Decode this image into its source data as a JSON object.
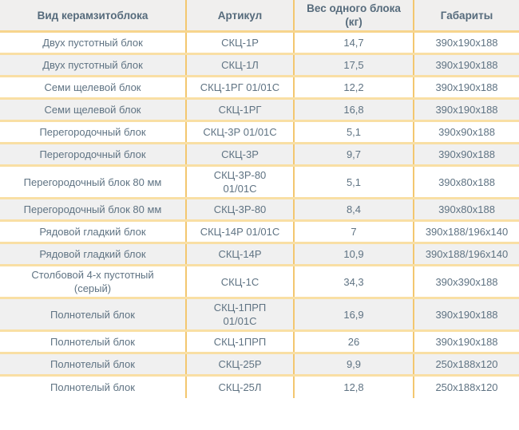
{
  "table": {
    "columns": [
      {
        "id": "type",
        "label": "Вид керамзитоблока"
      },
      {
        "id": "articul",
        "label": "Артикул"
      },
      {
        "id": "weight",
        "label": "Вес одного блока (кг)"
      },
      {
        "id": "dimensions",
        "label": "Габариты"
      }
    ],
    "rows": [
      {
        "type": "Двух пустотный блок",
        "articul": "СКЦ-1Р",
        "weight": "14,7",
        "dimensions": "390х190х188"
      },
      {
        "type": "Двух пустотный блок",
        "articul": "СКЦ-1Л",
        "weight": "17,5",
        "dimensions": "390х190х188"
      },
      {
        "type": "Семи щелевой блок",
        "articul": "СКЦ-1РГ 01/01С",
        "weight": "12,2",
        "dimensions": "390х190х188"
      },
      {
        "type": "Семи щелевой блок",
        "articul": "СКЦ-1РГ",
        "weight": "16,8",
        "dimensions": "390х190х188"
      },
      {
        "type": "Перегородочный блок",
        "articul": "СКЦ-3Р 01/01С",
        "weight": "5,1",
        "dimensions": "390х90х188"
      },
      {
        "type": "Перегородочный блок",
        "articul": "СКЦ-3Р",
        "weight": "9,7",
        "dimensions": "390х90х188"
      },
      {
        "type": "Перегородочный блок 80 мм",
        "articul": "СКЦ-3Р-80\n01/01С",
        "weight": "5,1",
        "dimensions": "390х80х188"
      },
      {
        "type": "Перегородочный блок 80 мм",
        "articul": "СКЦ-3Р-80",
        "weight": "8,4",
        "dimensions": "390х80х188"
      },
      {
        "type": "Рядовой гладкий блок",
        "articul": "СКЦ-14Р 01/01С",
        "weight": "7",
        "dimensions": "390х188/196х140"
      },
      {
        "type": "Рядовой гладкий блок",
        "articul": "СКЦ-14Р",
        "weight": "10,9",
        "dimensions": "390х188/196х140"
      },
      {
        "type": "Столбовой 4-х пустотный\n(серый)",
        "articul": "СКЦ-1С",
        "weight": "34,3",
        "dimensions": "390х390х188"
      },
      {
        "type": "Полнотелый блок",
        "articul": "СКЦ-1ПРП\n01/01С",
        "weight": "16,9",
        "dimensions": "390х190х188"
      },
      {
        "type": "Полнотелый блок",
        "articul": "СКЦ-1ПРП",
        "weight": "26",
        "dimensions": "390х190х188"
      },
      {
        "type": "Полнотелый блок",
        "articul": "СКЦ-25Р",
        "weight": "9,9",
        "dimensions": "250х188х120"
      },
      {
        "type": "Полнотелый блок",
        "articul": "СКЦ-25Л",
        "weight": "12,8",
        "dimensions": "250х188х120"
      }
    ],
    "colors": {
      "header_bg": "#f0efee",
      "row_bg": "#ffffff",
      "row_alt_bg": "#f0f0f0",
      "border_horizontal": "#f9dfa4",
      "border_vertical": "#f3c76f",
      "header_text": "#566b7c",
      "cell_text": "#5f7383"
    }
  }
}
